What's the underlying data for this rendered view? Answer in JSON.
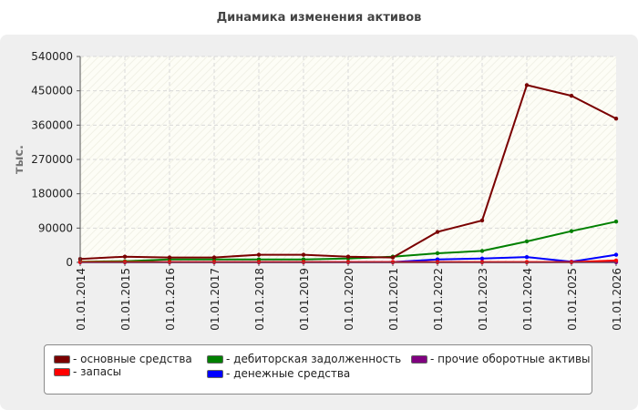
{
  "chart_data": {
    "type": "line",
    "title": "Динамика изменения активов",
    "ylabel": "тыс.",
    "xlabel": "",
    "ylim": [
      0,
      540000
    ],
    "yticks": [
      "0",
      "90000",
      "180000",
      "270000",
      "360000",
      "450000",
      "540000"
    ],
    "categories": [
      "01.01.2014",
      "01.01.2015",
      "01.01.2016",
      "01.01.2017",
      "01.01.2018",
      "01.01.2019",
      "01.01.2020",
      "01.01.2021",
      "01.01.2022",
      "01.01.2023",
      "01.01.2024",
      "01.01.2025",
      "01.01.2026"
    ],
    "grid": true,
    "legend_position": "bottom",
    "series": [
      {
        "name": "- основные средства",
        "color": "#7a0000",
        "values": [
          9000,
          15000,
          13000,
          13000,
          20000,
          20000,
          15000,
          13000,
          80000,
          110000,
          465000,
          437000,
          377000
        ]
      },
      {
        "name": "- запасы",
        "color": "#ff0000",
        "values": [
          1000,
          1000,
          1000,
          1000,
          1000,
          1000,
          1000,
          1000,
          1000,
          1000,
          1000,
          1000,
          5000
        ]
      },
      {
        "name": "- дебиторская задолженность",
        "color": "#008000",
        "values": [
          2000,
          3000,
          8000,
          8000,
          8000,
          8000,
          10000,
          15000,
          24000,
          30000,
          55000,
          82000,
          107000
        ]
      },
      {
        "name": "- денежные средства",
        "color": "#0000ff",
        "values": [
          1000,
          1000,
          1000,
          1000,
          1000,
          1000,
          1000,
          1000,
          8000,
          10000,
          14000,
          2000,
          20000
        ]
      },
      {
        "name": "- прочие оборотные активы",
        "color": "#800080",
        "values": [
          500,
          500,
          500,
          500,
          500,
          500,
          500,
          500,
          500,
          500,
          500,
          500,
          500
        ]
      }
    ]
  }
}
